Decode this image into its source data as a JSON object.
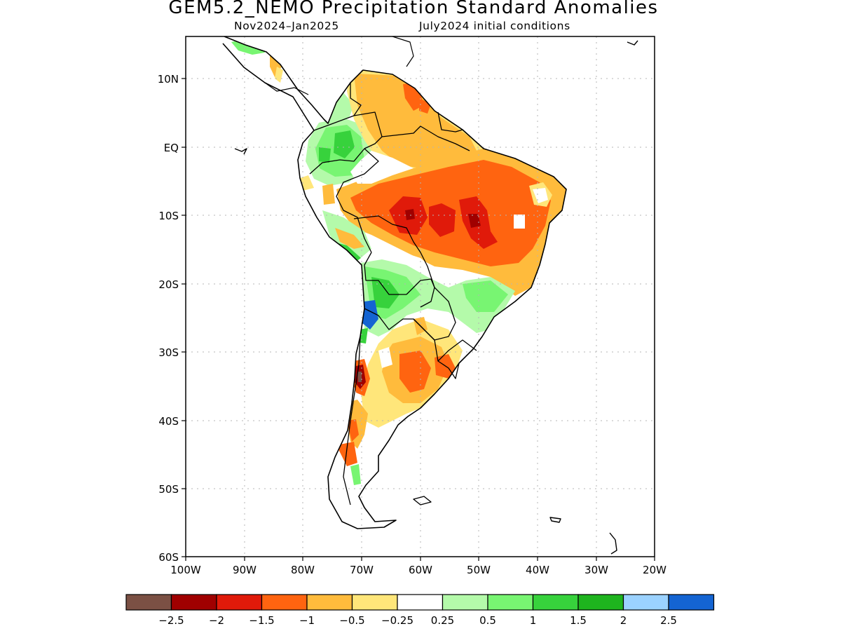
{
  "title": "GEM5.2_NEMO Precipitation Standard Anomalies",
  "subtitle_period": "Nov2024–Jan2025",
  "subtitle_init": "July2024 initial conditions",
  "map": {
    "lon_range": [
      -100,
      -20
    ],
    "lat_range": [
      -60,
      15
    ],
    "lat_ticks": [
      {
        "value": 10,
        "label": "10N"
      },
      {
        "value": 0,
        "label": "EQ"
      },
      {
        "value": -10,
        "label": "10S"
      },
      {
        "value": -20,
        "label": "20S"
      },
      {
        "value": -30,
        "label": "30S"
      },
      {
        "value": -40,
        "label": "40S"
      },
      {
        "value": -50,
        "label": "50S"
      },
      {
        "value": -60,
        "label": "60S"
      }
    ],
    "lon_ticks": [
      {
        "value": -100,
        "label": "100W"
      },
      {
        "value": -90,
        "label": "90W"
      },
      {
        "value": -80,
        "label": "80W"
      },
      {
        "value": -70,
        "label": "70W"
      },
      {
        "value": -60,
        "label": "60W"
      },
      {
        "value": -50,
        "label": "50W"
      },
      {
        "value": -40,
        "label": "40W"
      },
      {
        "value": -30,
        "label": "30W"
      },
      {
        "value": -20,
        "label": "20W"
      }
    ]
  },
  "colorbar": {
    "colors": [
      "#7b5044",
      "#a00000",
      "#e01a0a",
      "#ff6410",
      "#ffbb3c",
      "#ffe67a",
      "#ffffff",
      "#b4faaa",
      "#78f572",
      "#37d23c",
      "#1eb41e",
      "#9bd2ff",
      "#1464d2"
    ],
    "labels": [
      "−2.5",
      "−2",
      "−1.5",
      "−1",
      "−0.5",
      "−0.25",
      "0.25",
      "0.5",
      "1",
      "1.5",
      "2",
      "2.5"
    ]
  }
}
